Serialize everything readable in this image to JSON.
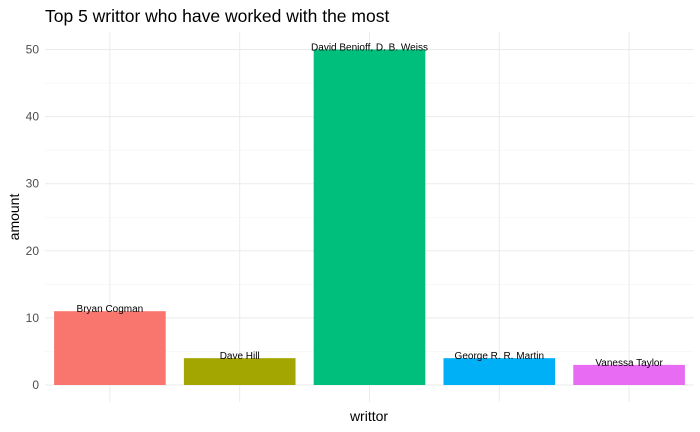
{
  "chart_data": {
    "type": "bar",
    "title": "Top 5 writtor who have worked with the most",
    "xlabel": "writtor",
    "ylabel": "amount",
    "categories": [
      "Bryan Cogman",
      "Dave Hill",
      "David Benioff, D. B. Weiss",
      "George R. R. Martin",
      "Vanessa Taylor"
    ],
    "values": [
      11,
      4,
      50,
      4,
      3
    ],
    "colors": [
      "#f8766d",
      "#a3a500",
      "#00bf7d",
      "#00b0f6",
      "#e76bf3"
    ],
    "ylim": [
      0,
      52
    ],
    "yticks": [
      0,
      10,
      20,
      30,
      40,
      50
    ],
    "grid": true,
    "legend": "none",
    "data_labels": true,
    "x_tick_labels": false
  }
}
